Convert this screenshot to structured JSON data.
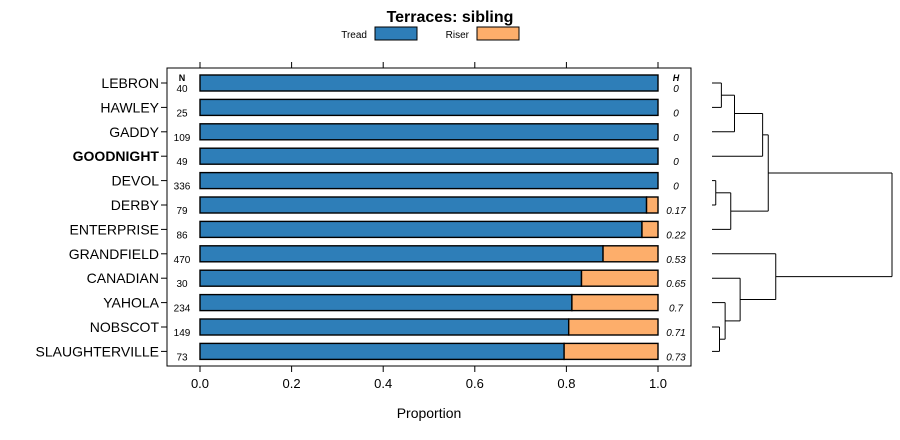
{
  "chart_data": {
    "type": "bar",
    "stacked": true,
    "orientation": "horizontal",
    "title": "Terraces: sibling",
    "xlabel": "Proportion",
    "ylabel": "",
    "xlim": [
      0,
      1
    ],
    "x_ticks": [
      "0.0",
      "0.2",
      "0.4",
      "0.6",
      "0.8",
      "1.0"
    ],
    "x_tick_values": [
      0,
      0.2,
      0.4,
      0.6,
      0.8,
      1.0
    ],
    "n_header": "N",
    "h_header": "H",
    "highlight": "GOODNIGHT",
    "legend": [
      {
        "name": "Tread",
        "color": "#2e7eb8"
      },
      {
        "name": "Riser",
        "color": "#fdae6b"
      }
    ],
    "categories": [
      "LEBRON",
      "HAWLEY",
      "GADDY",
      "GOODNIGHT",
      "DEVOL",
      "DERBY",
      "ENTERPRISE",
      "GRANDFIELD",
      "CANADIAN",
      "YAHOLA",
      "NOBSCOT",
      "SLAUGHTERVILLE"
    ],
    "n": [
      "40",
      "25",
      "109",
      "49",
      "336",
      "79",
      "86",
      "470",
      "30",
      "234",
      "149",
      "73"
    ],
    "h": [
      "0",
      "0",
      "0",
      "0",
      "0",
      "0.17",
      "0.22",
      "0.53",
      "0.65",
      "0.7",
      "0.71",
      "0.73"
    ],
    "series": [
      {
        "name": "Tread",
        "values": [
          1.0,
          1.0,
          1.0,
          1.0,
          1.0,
          0.975,
          0.965,
          0.88,
          0.833,
          0.812,
          0.805,
          0.795
        ]
      },
      {
        "name": "Riser",
        "values": [
          0.0,
          0.0,
          0.0,
          0.0,
          0.0,
          0.025,
          0.035,
          0.12,
          0.167,
          0.188,
          0.195,
          0.205
        ]
      }
    ],
    "dendrogram": {
      "description": "hierarchical clustering of rows",
      "merges": [
        {
          "a": "LEBRON",
          "b": "HAWLEY",
          "height": 0.05
        },
        {
          "a": "m1",
          "b": "GADDY",
          "height": 0.12
        },
        {
          "a": "DEVOL",
          "b": "DERBY",
          "height": 0.02
        },
        {
          "a": "m3",
          "b": "ENTERPRISE",
          "height": 0.1
        },
        {
          "a": "m2",
          "b": "GOODNIGHT",
          "height": 0.27
        },
        {
          "a": "m5",
          "b": "m4",
          "height": 0.3
        },
        {
          "a": "NOBSCOT",
          "b": "SLAUGHTERVILLE",
          "height": 0.04
        },
        {
          "a": "YAHOLA",
          "b": "m7",
          "height": 0.07
        },
        {
          "a": "CANADIAN",
          "b": "m8",
          "height": 0.15
        },
        {
          "a": "GRANDFIELD",
          "b": "m9",
          "height": 0.34
        },
        {
          "a": "m6",
          "b": "m10",
          "height": 0.96
        }
      ]
    }
  }
}
